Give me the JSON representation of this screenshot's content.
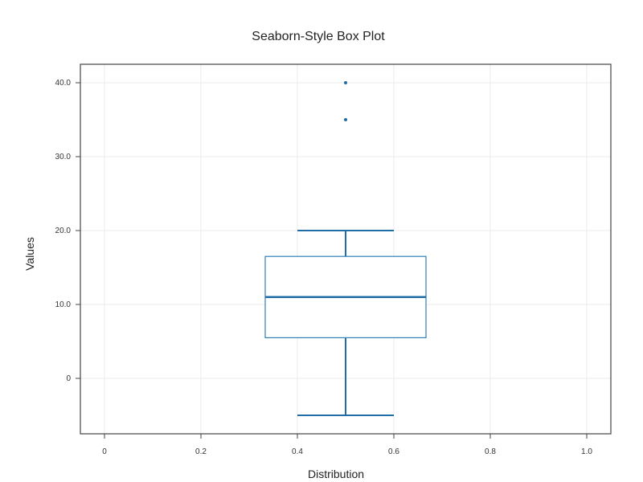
{
  "chart_data": {
    "type": "box",
    "title": "Seaborn-Style Box Plot",
    "xlabel": "Distribution",
    "ylabel": "Values",
    "xlim": [
      -0.05,
      1.05
    ],
    "ylim": [
      -7.5,
      42.5
    ],
    "x_ticks": [
      0,
      0.2,
      0.4,
      0.6,
      0.8,
      1.0
    ],
    "x_tick_labels": [
      "0",
      "0.2",
      "0.4",
      "0.6",
      "0.8",
      "1.0"
    ],
    "y_ticks": [
      0,
      10,
      20,
      30,
      40
    ],
    "y_tick_labels": [
      "0",
      "10.0",
      "20.0",
      "30.0",
      "40.0"
    ],
    "grid": true,
    "box": {
      "position": 0.5,
      "box_left": 0.3333,
      "box_right": 0.6667,
      "whisker_cap_left": 0.4,
      "whisker_cap_right": 0.6,
      "q1": 5.5,
      "median": 11,
      "q3": 16.5,
      "whisker_low": -5,
      "whisker_high": 20
    },
    "outliers": [
      35,
      40
    ],
    "colors": {
      "box": "#2e7fb8",
      "whisker": "#1f6ca6",
      "median": "#1f6ca6",
      "outlier": "#1f6ca6"
    }
  }
}
